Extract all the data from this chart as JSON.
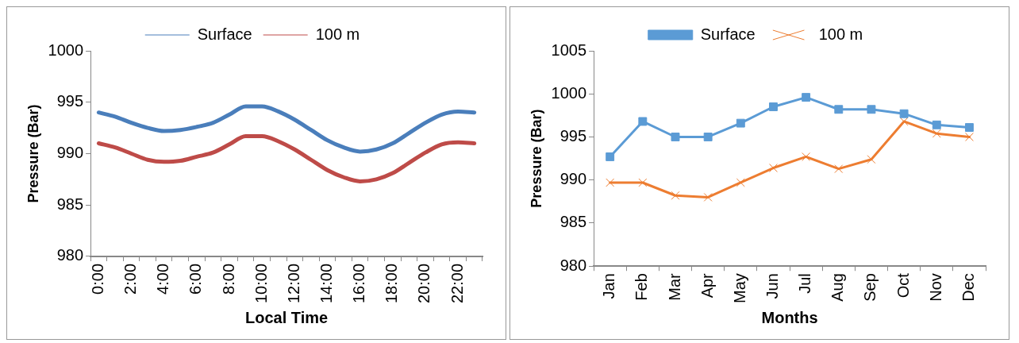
{
  "chart_data": [
    {
      "type": "line",
      "xlabel": "Local Time",
      "ylabel": "Pressure (Bar)",
      "categories": [
        "0:00",
        null,
        "2:00",
        null,
        "4:00",
        null,
        "6:00",
        null,
        "8:00",
        null,
        "10:00",
        null,
        "12:00",
        null,
        "14:00",
        null,
        "16:00",
        null,
        "18:00",
        null,
        "20:00",
        null,
        "22:00",
        null
      ],
      "ylim": [
        980,
        1000
      ],
      "yticks": [
        980,
        985,
        990,
        995,
        1000
      ],
      "grid": false,
      "legend": "top",
      "marker": "none",
      "series": [
        {
          "name": "Surface",
          "color": "#4a7ebb",
          "values": [
            994.0,
            993.6,
            993.0,
            992.5,
            992.2,
            992.3,
            992.6,
            993.0,
            993.8,
            994.6,
            994.6,
            994.1,
            993.3,
            992.3,
            991.3,
            990.6,
            990.2,
            990.4,
            991.0,
            992.0,
            993.0,
            993.8,
            994.1,
            994.0
          ]
        },
        {
          "name": "100 m",
          "color": "#be4b48",
          "values": [
            991.0,
            990.6,
            990.0,
            989.4,
            989.2,
            989.3,
            989.7,
            990.1,
            990.9,
            991.7,
            991.7,
            991.2,
            990.4,
            989.4,
            988.4,
            987.7,
            987.3,
            987.5,
            988.1,
            989.1,
            990.1,
            990.9,
            991.1,
            991.0
          ]
        }
      ]
    },
    {
      "type": "line",
      "xlabel": "Months",
      "ylabel": "Pressure (Bar)",
      "categories": [
        "Jan",
        "Feb",
        "Mar",
        "Apr",
        "May",
        "Jun",
        "Jul",
        "Aug",
        "Sep",
        "Oct",
        "Nov",
        "Dec"
      ],
      "ylim": [
        980,
        1005
      ],
      "yticks": [
        980,
        985,
        990,
        995,
        1000,
        1005
      ],
      "grid": false,
      "legend": "top",
      "series": [
        {
          "name": "Surface",
          "color": "#5b9bd5",
          "marker": "square",
          "values": [
            992.7,
            996.8,
            995.0,
            995.0,
            996.6,
            998.5,
            999.6,
            998.2,
            998.2,
            997.7,
            996.4,
            996.1
          ]
        },
        {
          "name": "100 m",
          "color": "#ed7d31",
          "marker": "cross",
          "values": [
            989.7,
            989.7,
            988.2,
            988.0,
            989.7,
            991.4,
            992.7,
            991.3,
            992.4,
            996.8,
            995.4,
            995.0
          ]
        }
      ]
    }
  ]
}
